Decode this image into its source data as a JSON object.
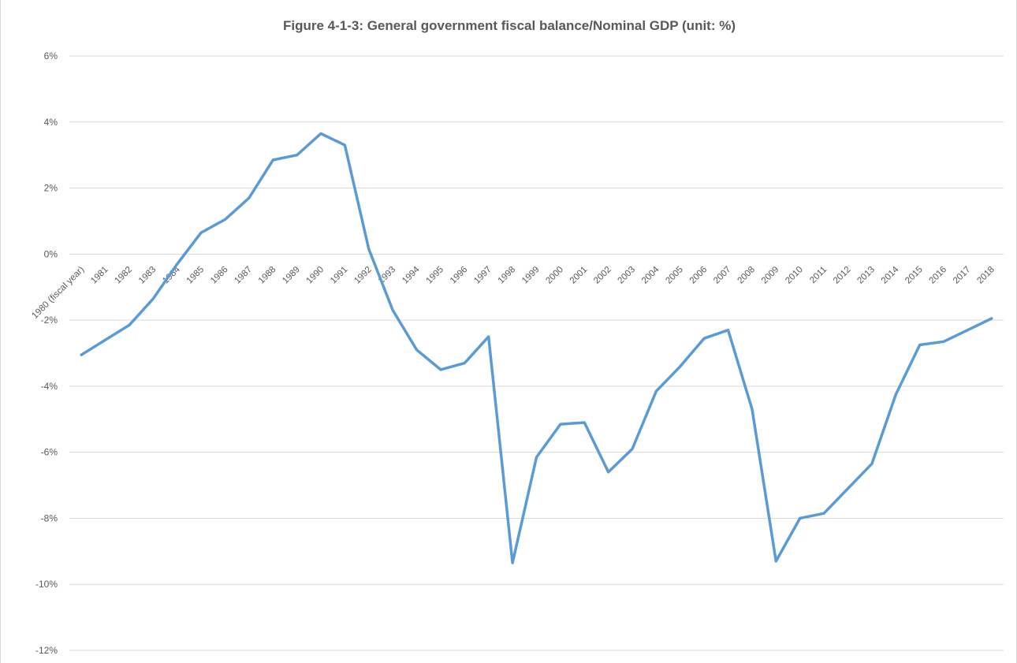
{
  "chart_data": {
    "type": "line",
    "title": "Figure 4-1-3: General government fiscal balance/Nominal GDP (unit: %)",
    "xlabel": "",
    "ylabel": "",
    "ylim": [
      -12,
      6
    ],
    "y_ticks": [
      6,
      4,
      2,
      0,
      -2,
      -4,
      -6,
      -8,
      -10,
      -12
    ],
    "y_tick_labels": [
      "6%",
      "4%",
      "2%",
      "0%",
      "-2%",
      "-4%",
      "-6%",
      "-8%",
      "-10%",
      "-12%"
    ],
    "grid": true,
    "legend": "none",
    "line_color": "#5b9bd5",
    "categories": [
      "1980 (fiscal year)",
      "1981",
      "1982",
      "1983",
      "1984",
      "1985",
      "1986",
      "1987",
      "1988",
      "1989",
      "1990",
      "1991",
      "1992",
      "1993",
      "1994",
      "1995",
      "1996",
      "1997",
      "1998",
      "1999",
      "2000",
      "2001",
      "2002",
      "2003",
      "2004",
      "2005",
      "2006",
      "2007",
      "2008",
      "2009",
      "2010",
      "2011",
      "2012",
      "2013",
      "2014",
      "2015",
      "2016",
      "2017",
      "2018"
    ],
    "series": [
      {
        "values": [
          -3.05,
          -2.6,
          -2.15,
          -1.35,
          -0.3,
          0.65,
          1.05,
          1.7,
          2.85,
          3.0,
          3.65,
          3.3,
          0.15,
          -1.7,
          -2.9,
          -3.5,
          -3.3,
          -2.5,
          -9.35,
          -6.15,
          -5.15,
          -5.1,
          -6.6,
          -5.9,
          -4.15,
          -3.4,
          -2.55,
          -2.3,
          -4.7,
          -9.3,
          -8.0,
          -7.85,
          -7.1,
          -6.35,
          -4.25,
          -2.75,
          -2.65,
          -2.3,
          -1.95
        ]
      }
    ]
  }
}
